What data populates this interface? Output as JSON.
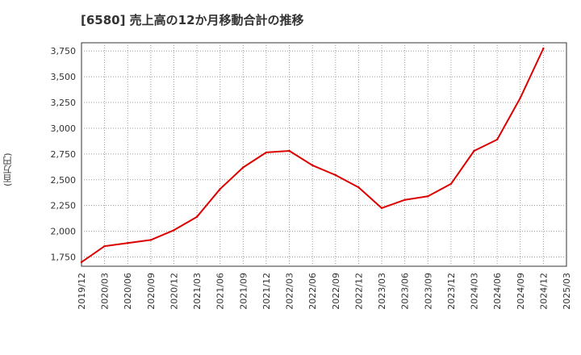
{
  "chart_data": {
    "type": "line",
    "title": "[6580]  売上高の12か月移動合計の推移",
    "ylabel": "(百万円)",
    "xlabel": "",
    "x_ticks": [
      "2019/12",
      "2020/03",
      "2020/06",
      "2020/09",
      "2020/12",
      "2021/03",
      "2021/06",
      "2021/09",
      "2021/12",
      "2022/03",
      "2022/06",
      "2022/09",
      "2022/12",
      "2023/03",
      "2023/06",
      "2023/09",
      "2023/12",
      "2024/03",
      "2024/06",
      "2024/09",
      "2024/12",
      "2025/03"
    ],
    "y_ticks": [
      1750,
      2000,
      2250,
      2500,
      2750,
      3000,
      3250,
      3500,
      3750
    ],
    "ylim": [
      1660,
      3830
    ],
    "grid": true,
    "series": [
      {
        "name": "売上高(12か月移動合計)",
        "color": "#dd0000",
        "x": [
          "2019/12",
          "2020/03",
          "2020/06",
          "2020/09",
          "2020/12",
          "2021/03",
          "2021/06",
          "2021/09",
          "2021/12",
          "2022/03",
          "2022/06",
          "2022/09",
          "2022/12",
          "2023/03",
          "2023/06",
          "2023/09",
          "2023/12",
          "2024/03",
          "2024/06",
          "2024/09",
          "2024/12"
        ],
        "values": [
          1700,
          1855,
          1885,
          1915,
          2010,
          2140,
          2410,
          2620,
          2765,
          2780,
          2640,
          2545,
          2425,
          2225,
          2305,
          2340,
          2460,
          2780,
          2890,
          3295,
          3775
        ]
      }
    ]
  }
}
